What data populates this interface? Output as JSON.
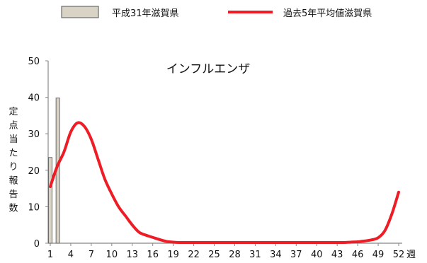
{
  "chart_data": {
    "type": "bar+line",
    "title": "インフルエンザ",
    "ylabel": "定点当たり報告数",
    "xunit": "週",
    "ylim": [
      0,
      50
    ],
    "yticks": [
      0,
      10,
      20,
      30,
      40,
      50
    ],
    "xlim": [
      1,
      52
    ],
    "xticks": [
      1,
      4,
      7,
      10,
      13,
      16,
      19,
      22,
      25,
      28,
      31,
      34,
      37,
      40,
      43,
      46,
      49,
      52
    ],
    "grid": false,
    "legend_position": "top",
    "series": [
      {
        "name": "平成31年滋賀県",
        "type": "bar",
        "color": "#d8d3c4",
        "edge_color": "#6b6b6b",
        "x": [
          1,
          2
        ],
        "values": [
          23.5,
          39.8
        ]
      },
      {
        "name": "過去5年平均値滋賀県",
        "type": "line",
        "color": "#ee1c25",
        "x": [
          1,
          2,
          3,
          4,
          5,
          6,
          7,
          8,
          9,
          10,
          11,
          12,
          13,
          14,
          15,
          16,
          17,
          18,
          19,
          20,
          21,
          22,
          23,
          24,
          25,
          26,
          27,
          28,
          29,
          30,
          31,
          32,
          33,
          34,
          35,
          36,
          37,
          38,
          39,
          40,
          41,
          42,
          43,
          44,
          45,
          46,
          47,
          48,
          49,
          50,
          51,
          52
        ],
        "values": [
          15.5,
          21,
          25,
          30.5,
          33,
          32,
          28.5,
          23,
          17.5,
          13.5,
          10,
          7.5,
          5,
          3,
          2.2,
          1.6,
          1.0,
          0.5,
          0.3,
          0.2,
          0.2,
          0.2,
          0.2,
          0.2,
          0.2,
          0.2,
          0.2,
          0.2,
          0.2,
          0.2,
          0.2,
          0.2,
          0.2,
          0.2,
          0.2,
          0.2,
          0.2,
          0.2,
          0.2,
          0.2,
          0.2,
          0.2,
          0.2,
          0.2,
          0.3,
          0.4,
          0.6,
          0.9,
          1.5,
          3.5,
          8,
          14
        ]
      }
    ]
  }
}
